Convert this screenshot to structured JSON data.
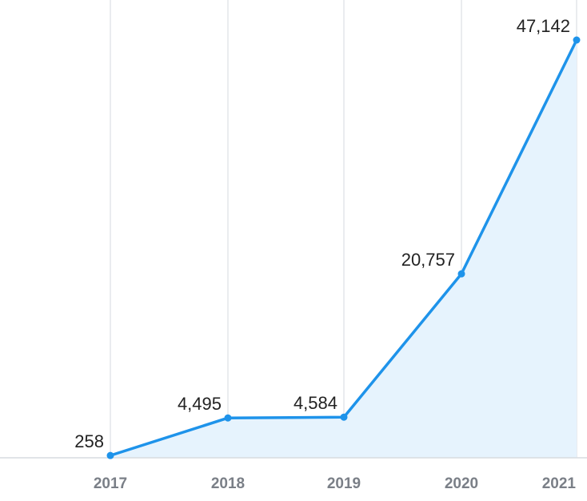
{
  "chart_data": {
    "type": "area",
    "categories": [
      "2017",
      "2018",
      "2019",
      "2020",
      "2021"
    ],
    "series": [
      {
        "values": [
          258,
          4495,
          4584,
          20757,
          47142
        ]
      }
    ],
    "data_labels": [
      "258",
      "4,495",
      "4,584",
      "20,757",
      "47,142"
    ],
    "ylim": [
      0,
      48000
    ],
    "grid": "vertical",
    "legend": "none",
    "colors": {
      "line": "#1e93ea",
      "fill": "#e6f3fd",
      "grid": "#e3e6ea",
      "tick": "#7a7f87",
      "label": "#222222"
    }
  }
}
